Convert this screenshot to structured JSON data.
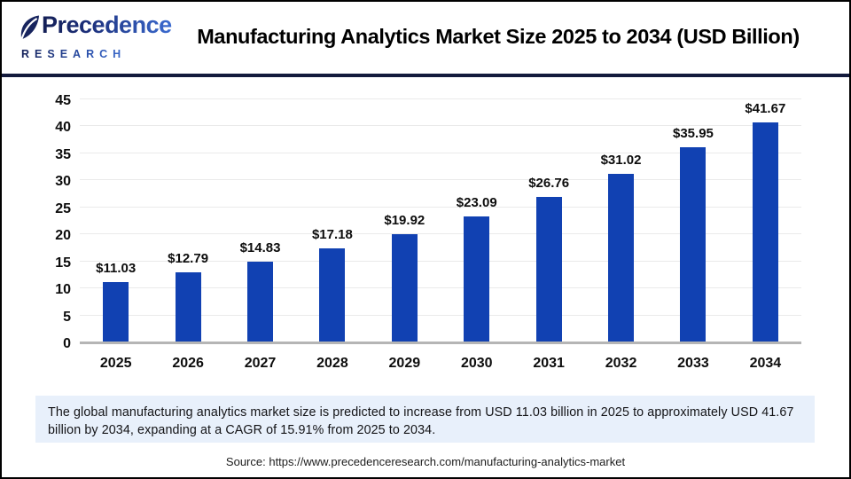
{
  "header": {
    "logo_name": "Precedence",
    "logo_sub": "RESEARCH",
    "title": "Manufacturing Analytics Market Size 2025 to 2034 (USD Billion)"
  },
  "chart_data": {
    "type": "bar",
    "title": "Manufacturing Analytics Market Size 2025 to 2034 (USD Billion)",
    "categories": [
      "2025",
      "2026",
      "2027",
      "2028",
      "2029",
      "2030",
      "2031",
      "2032",
      "2033",
      "2034"
    ],
    "values": [
      11.03,
      12.79,
      14.83,
      17.18,
      19.92,
      23.09,
      26.76,
      31.02,
      35.95,
      41.67
    ],
    "bar_labels": [
      "$11.03",
      "$12.79",
      "$14.83",
      "$17.18",
      "$19.92",
      "$23.09",
      "$26.76",
      "$31.02",
      "$35.95",
      "$41.67"
    ],
    "yticks": [
      0,
      5,
      10,
      15,
      20,
      25,
      30,
      35,
      40,
      45
    ],
    "ylim": [
      0,
      45
    ],
    "xlabel": "",
    "ylabel": "",
    "grid": true,
    "legend_position": "none",
    "bar_color": "#1141b2"
  },
  "footer": {
    "summary": "The global manufacturing analytics market size is predicted to increase from USD 11.03 billion in 2025 to approximately USD 41.67 billion by 2034, expanding at a CAGR of 15.91% from 2025 to 2034.",
    "source": "Source: https://www.precedenceresearch.com/manufacturing-analytics-market"
  },
  "colors": {
    "bar_blue": "#1141b2",
    "divider_navy": "#131a3c",
    "callout_bg": "#e8f0fb",
    "gridline": "#eaeaea",
    "baseline": "#b5b5b5",
    "logo_dark": "#141f55",
    "logo_light": "#3b6bd0"
  }
}
